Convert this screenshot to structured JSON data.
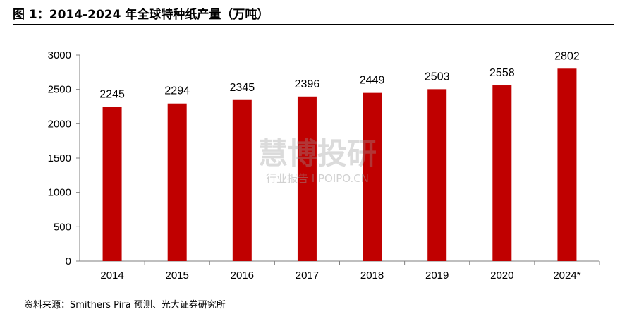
{
  "header": {
    "title": "图 1：2014-2024 年全球特种纸产量（万吨）"
  },
  "footer": {
    "source": "资料来源：Smithers Pira 预测、光大证券研究所"
  },
  "watermark": {
    "main": "慧博投研",
    "sub": "行业报告 I POIPO.CN"
  },
  "colors": {
    "bar": "#C00000",
    "axis": "#7f7f7f"
  },
  "chart_data": {
    "type": "bar",
    "categories": [
      "2014",
      "2015",
      "2016",
      "2017",
      "2018",
      "2019",
      "2020",
      "2024*"
    ],
    "values": [
      2245,
      2294,
      2345,
      2396,
      2449,
      2503,
      2558,
      2802
    ],
    "yticks": [
      0,
      500,
      1000,
      1500,
      2000,
      2500,
      3000
    ],
    "ylim": [
      0,
      3000
    ],
    "grid": false,
    "legend": false,
    "data_labels": true
  }
}
